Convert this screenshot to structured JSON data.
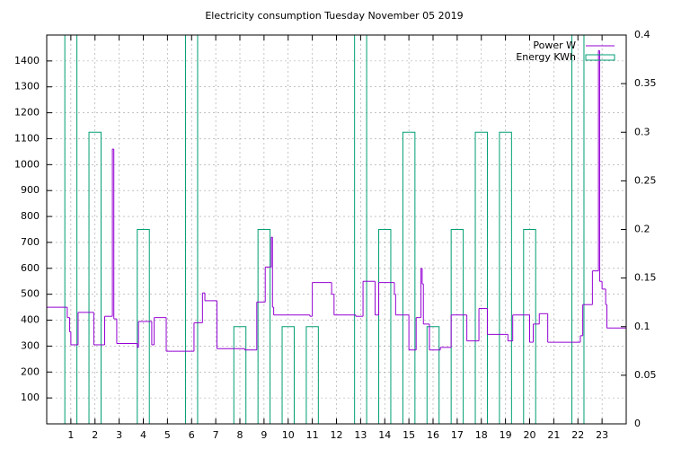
{
  "chart_data": {
    "type": "line",
    "title": "Electricity consumption Tuesday November 05 2019",
    "xlim": [
      0,
      24
    ],
    "xticks": [
      1,
      2,
      3,
      4,
      5,
      6,
      7,
      8,
      9,
      10,
      11,
      12,
      13,
      14,
      15,
      16,
      17,
      18,
      19,
      20,
      21,
      22,
      23
    ],
    "ylim": [
      0,
      1500
    ],
    "yticks": [
      100,
      200,
      300,
      400,
      500,
      600,
      700,
      800,
      900,
      1000,
      1100,
      1200,
      1300,
      1400
    ],
    "y2lim": [
      0,
      0.4
    ],
    "y2ticks": [
      0,
      0.05,
      0.1,
      0.15,
      0.2,
      0.25,
      0.3,
      0.35,
      0.4
    ],
    "grid": true,
    "legend": "top-right",
    "series": [
      {
        "name": "Power W",
        "type": "step",
        "color": "#9400d3",
        "x": [
          0,
          0.85,
          0.95,
          1.0,
          1.3,
          1.95,
          2.4,
          2.72,
          2.78,
          2.9,
          3.75,
          3.8,
          4.35,
          4.45,
          4.95,
          6.1,
          6.45,
          6.55,
          7.05,
          8.2,
          8.7,
          9.05,
          9.3,
          9.35,
          9.4,
          10.9,
          11.0,
          11.8,
          11.9,
          12.8,
          13.1,
          13.6,
          13.75,
          14.4,
          14.45,
          15.0,
          15.3,
          15.5,
          15.55,
          15.6,
          15.85,
          16.3,
          16.75,
          17.4,
          17.9,
          18.25,
          19.1,
          19.3,
          20.0,
          20.15,
          20.4,
          20.75,
          22.1,
          22.2,
          22.6,
          22.85,
          22.9,
          23.0,
          23.15,
          23.2
        ],
        "values": [
          450,
          410,
          355,
          305,
          430,
          305,
          415,
          1060,
          405,
          310,
          295,
          395,
          305,
          410,
          280,
          390,
          505,
          475,
          290,
          285,
          470,
          605,
          720,
          450,
          420,
          415,
          545,
          500,
          420,
          415,
          550,
          420,
          545,
          500,
          420,
          285,
          410,
          600,
          540,
          385,
          285,
          295,
          420,
          320,
          445,
          345,
          320,
          420,
          315,
          385,
          425,
          315,
          340,
          460,
          590,
          1440,
          550,
          520,
          460,
          370
        ]
      },
      {
        "name": "Energy KWh",
        "type": "boxes",
        "color": "#009e73",
        "axis": "y2",
        "x": [
          1,
          2,
          4,
          6,
          8,
          9,
          10,
          11,
          13,
          14,
          15,
          16,
          17,
          18,
          19,
          20,
          22
        ],
        "values": [
          0.4,
          0.3,
          0.2,
          0.4,
          0.1,
          0.2,
          0.1,
          0.1,
          0.4,
          0.2,
          0.3,
          0.1,
          0.2,
          0.3,
          0.3,
          0.2,
          0.4
        ]
      }
    ]
  }
}
